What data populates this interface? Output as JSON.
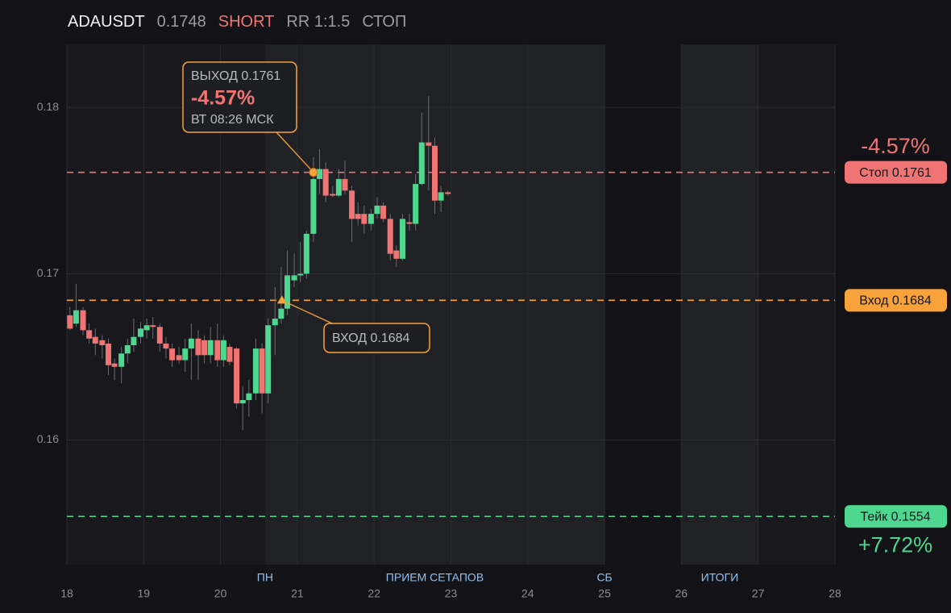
{
  "header": {
    "symbol": "ADAUSDT",
    "price": 0.1748,
    "side": "SHORT",
    "rr": "RR 1:1.5",
    "status": "СТОП"
  },
  "chart_data": {
    "type": "candlestick",
    "xlim": [
      18,
      28
    ],
    "xticks": [
      18,
      19,
      20,
      21,
      22,
      23,
      24,
      25,
      26,
      27,
      28
    ],
    "ylim": [
      0.1525,
      0.1838
    ],
    "yticks": [
      0.16,
      0.17,
      0.18
    ],
    "grid": true,
    "up_color": "#4ed88f",
    "down_color": "#f07474",
    "candles": {
      "x": [
        18.04,
        18.12,
        18.21,
        18.29,
        18.37,
        18.46,
        18.54,
        18.62,
        18.71,
        18.79,
        18.87,
        18.96,
        19.04,
        19.12,
        19.21,
        19.29,
        19.37,
        19.46,
        19.54,
        19.62,
        19.71,
        19.79,
        19.87,
        19.96,
        20.04,
        20.12,
        20.21,
        20.29,
        20.37,
        20.46,
        20.54,
        20.62,
        20.71,
        20.79,
        20.87,
        20.96,
        21.04,
        21.12,
        21.21,
        21.29,
        21.37,
        21.46,
        21.54,
        21.62,
        21.71,
        21.79,
        21.87,
        21.96,
        22.04,
        22.12,
        22.21,
        22.29,
        22.37,
        22.46,
        22.54,
        22.62,
        22.71,
        22.79,
        22.87,
        22.96
      ],
      "open": [
        0.1675,
        0.167,
        0.1678,
        0.1666,
        0.1662,
        0.166,
        0.1658,
        0.1646,
        0.1644,
        0.1652,
        0.1657,
        0.1662,
        0.1666,
        0.1669,
        0.1668,
        0.1658,
        0.1655,
        0.1651,
        0.1648,
        0.1655,
        0.1661,
        0.166,
        0.1651,
        0.166,
        0.1648,
        0.1656,
        0.1655,
        0.1622,
        0.1624,
        0.1628,
        0.1655,
        0.1628,
        0.1669,
        0.1673,
        0.1679,
        0.1696,
        0.1699,
        0.17,
        0.1724,
        0.1757,
        0.1763,
        0.1748,
        0.1747,
        0.1757,
        0.175,
        0.1736,
        0.1736,
        0.173,
        0.1736,
        0.1741,
        0.1733,
        0.1714,
        0.1709,
        0.1731,
        0.173,
        0.1754,
        0.1779,
        0.1777,
        0.1744,
        0.1749
      ],
      "high": [
        0.168,
        0.1694,
        0.168,
        0.167,
        0.1667,
        0.1663,
        0.1661,
        0.1649,
        0.1656,
        0.1661,
        0.1673,
        0.1671,
        0.1673,
        0.1674,
        0.167,
        0.1662,
        0.1658,
        0.1656,
        0.1661,
        0.167,
        0.1666,
        0.1663,
        0.1668,
        0.167,
        0.1663,
        0.1658,
        0.1656,
        0.1632,
        0.1636,
        0.1661,
        0.1658,
        0.1673,
        0.1692,
        0.1704,
        0.1714,
        0.1712,
        0.1719,
        0.1726,
        0.177,
        0.1775,
        0.1767,
        0.1753,
        0.1763,
        0.1768,
        0.1753,
        0.1743,
        0.1741,
        0.1739,
        0.1746,
        0.1743,
        0.1736,
        0.1717,
        0.1736,
        0.1736,
        0.176,
        0.1797,
        0.1807,
        0.1782,
        0.1753,
        0.175
      ],
      "low": [
        0.1666,
        0.1668,
        0.1663,
        0.1658,
        0.1651,
        0.1649,
        0.1639,
        0.1636,
        0.1634,
        0.1646,
        0.1653,
        0.1658,
        0.1661,
        0.1661,
        0.1653,
        0.1649,
        0.1644,
        0.1646,
        0.1641,
        0.1636,
        0.1636,
        0.1646,
        0.1646,
        0.1644,
        0.1644,
        0.1645,
        0.1619,
        0.1606,
        0.1614,
        0.1624,
        0.1616,
        0.1622,
        0.1651,
        0.167,
        0.1675,
        0.1692,
        0.1695,
        0.1697,
        0.1719,
        0.1748,
        0.1743,
        0.1746,
        0.1746,
        0.1748,
        0.1719,
        0.1729,
        0.1724,
        0.1726,
        0.1733,
        0.1731,
        0.1708,
        0.1704,
        0.1708,
        0.1726,
        0.1726,
        0.1753,
        0.175,
        0.1736,
        0.1737,
        0.1747
      ],
      "close": [
        0.1667,
        0.1678,
        0.1666,
        0.1661,
        0.1658,
        0.1657,
        0.1645,
        0.1644,
        0.1652,
        0.1657,
        0.1662,
        0.1667,
        0.1669,
        0.1668,
        0.1658,
        0.1655,
        0.1648,
        0.1648,
        0.1655,
        0.1661,
        0.1651,
        0.1651,
        0.166,
        0.1648,
        0.166,
        0.1647,
        0.1622,
        0.1624,
        0.1628,
        0.1655,
        0.1628,
        0.1669,
        0.1673,
        0.1679,
        0.1699,
        0.1699,
        0.17,
        0.1724,
        0.1757,
        0.1763,
        0.1747,
        0.1747,
        0.1757,
        0.175,
        0.1733,
        0.1733,
        0.173,
        0.1736,
        0.1741,
        0.1733,
        0.1712,
        0.1709,
        0.1733,
        0.173,
        0.1754,
        0.1779,
        0.1777,
        0.1744,
        0.1749,
        0.1748
      ]
    },
    "shaded_ranges": [
      [
        20.58,
        25
      ],
      [
        26,
        27
      ]
    ],
    "dark_ranges": [
      [
        25,
        26
      ]
    ],
    "sessions": [
      {
        "label": "ПН",
        "x": 20.58
      },
      {
        "label": "ПРИЕМ СЕТАПОВ",
        "x": 22.79
      },
      {
        "label": "СБ",
        "x": 25
      },
      {
        "label": "ИТОГИ",
        "x": 26.5
      }
    ],
    "levels": [
      {
        "value": 0.1761,
        "label": "Стоп 0.1761",
        "color": "#f07474",
        "pct": "-4.57%"
      },
      {
        "value": 0.1684,
        "label": "Вход 0.1684",
        "color": "#f7a23b"
      },
      {
        "value": 0.1554,
        "label": "Тейк 0.1554",
        "color": "#4ed88f",
        "pct": "+7.72%"
      }
    ],
    "markers": {
      "exit": {
        "x": 21.21,
        "y": 0.1761,
        "color": "#f7a23b",
        "title": "ВЫХОД 0.1761",
        "pct": "-4.57%",
        "time": "ВТ 08:26 МСК"
      },
      "entry": {
        "x": 20.8,
        "y": 0.1684,
        "color": "#f7a23b",
        "title": "ВХОД 0.1684"
      }
    }
  }
}
